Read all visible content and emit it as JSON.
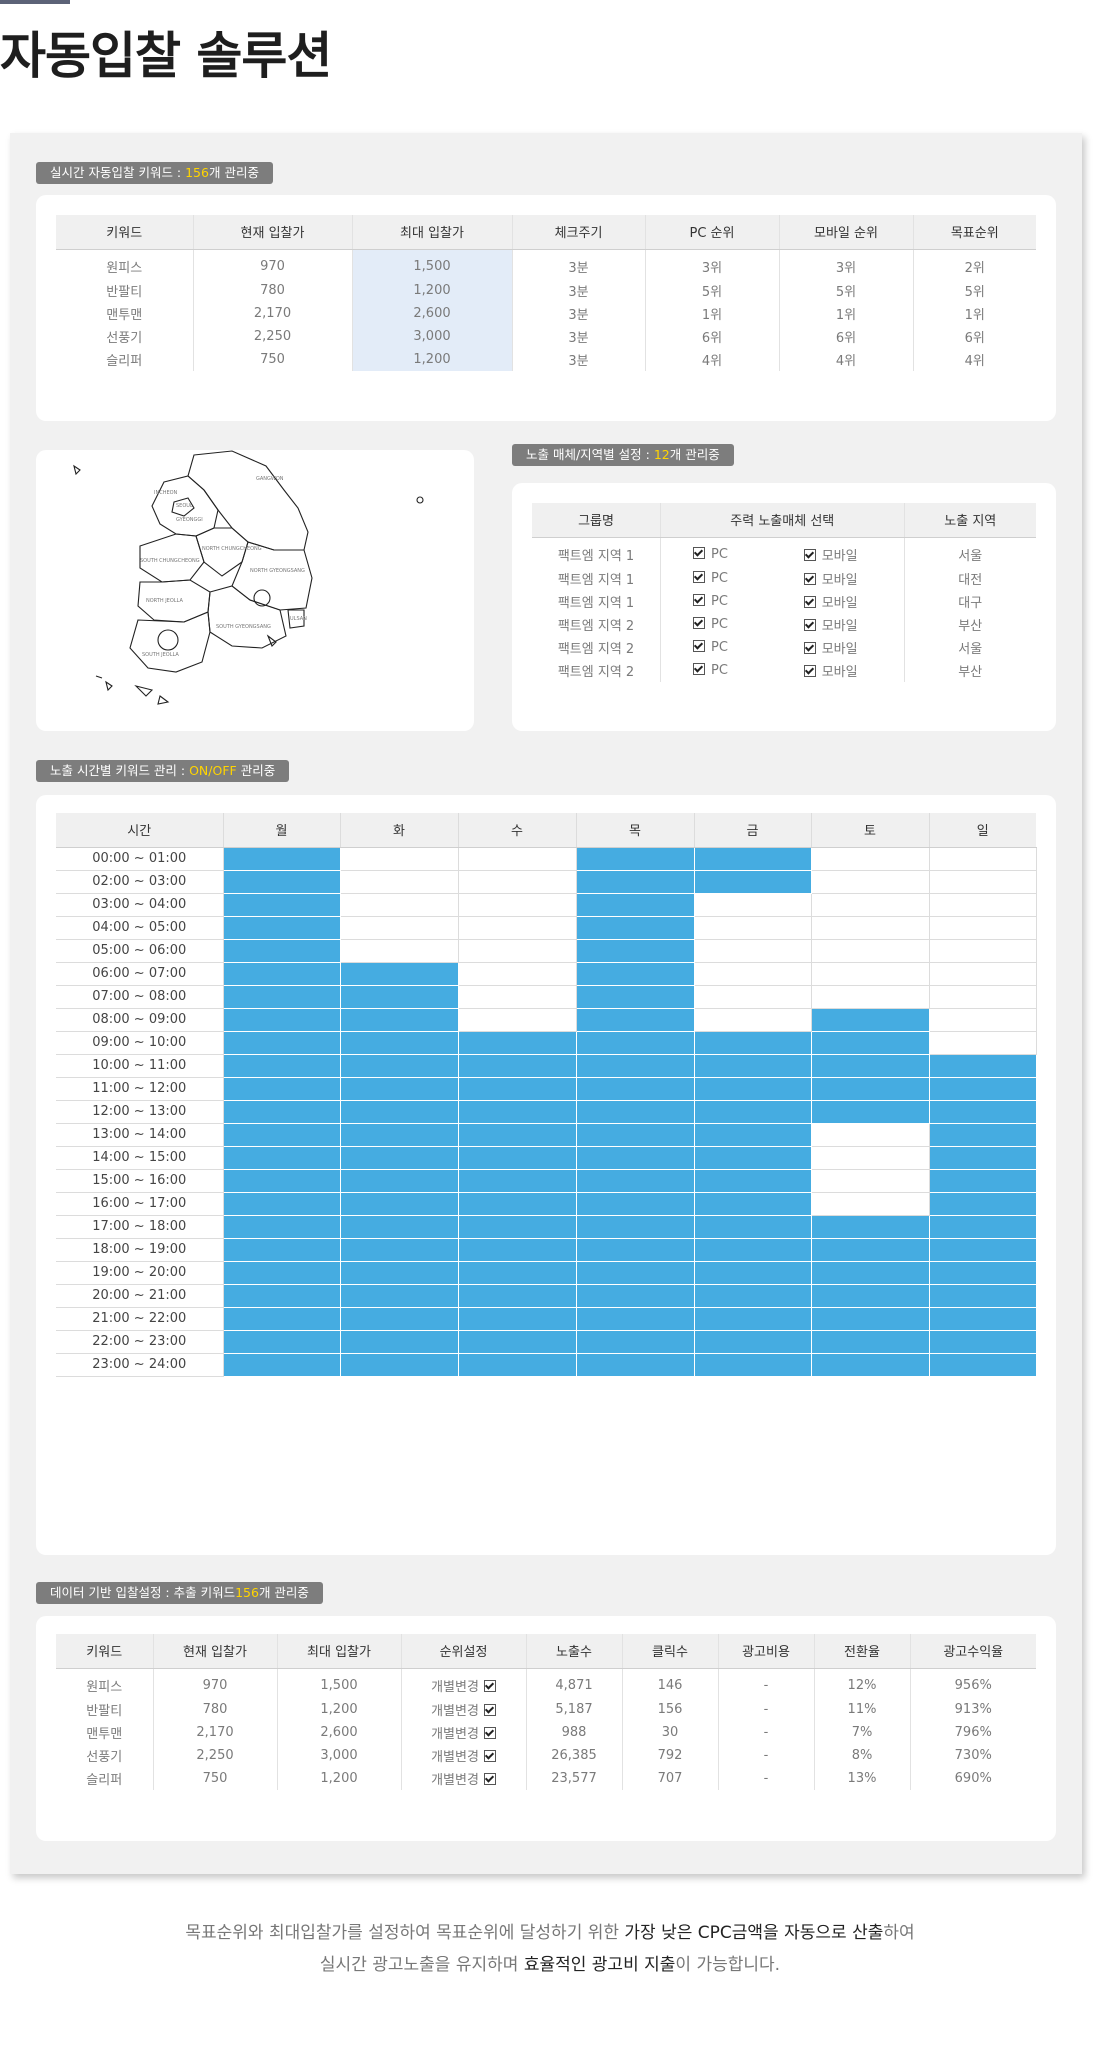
{
  "page_title": "자동입찰 솔루션",
  "section1": {
    "tag_prefix": "실시간 자동입찰 키워드 : ",
    "tag_count": "156",
    "tag_suffix": "개 관리중",
    "headers": [
      "키워드",
      "현재 입찰가",
      "최대 입찰가",
      "체크주기",
      "PC 순위",
      "모바일 순위",
      "목표순위"
    ],
    "rows": [
      [
        "원피스",
        "970",
        "1,500",
        "3분",
        "3위",
        "3위",
        "2위"
      ],
      [
        "반팔티",
        "780",
        "1,200",
        "3분",
        "5위",
        "5위",
        "5위"
      ],
      [
        "맨투맨",
        "2,170",
        "2,600",
        "3분",
        "1위",
        "1위",
        "1위"
      ],
      [
        "선풍기",
        "2,250",
        "3,000",
        "3분",
        "6위",
        "6위",
        "6위"
      ],
      [
        "슬리퍼",
        "750",
        "1,200",
        "3분",
        "4위",
        "4위",
        "4위"
      ]
    ]
  },
  "map": {
    "labels": [
      "GANGWON",
      "INCHEON",
      "SEOUL",
      "GYEONGGI",
      "NORTH CHUNGCHEONG",
      "SOUTH CHUNGCHEONG",
      "NORTH GYEONGSANG",
      "NORTH JEOLLA",
      "SOUTH GYEONGSANG",
      "ULSAN",
      "SOUTH JEOLLA",
      "DAEGU",
      "GWANGJU",
      "DAEJEON"
    ]
  },
  "section2": {
    "tag_prefix": "노출 매체/지역별 설정 : ",
    "tag_count": "12",
    "tag_suffix": "개 관리중",
    "headers": [
      "그룹명",
      "주력 노출매체 선택",
      "노출 지역"
    ],
    "pc_label": "PC",
    "mobile_label": "모바일",
    "rows": [
      {
        "group": "팩트엠 지역 1",
        "region": "서울"
      },
      {
        "group": "팩트엠 지역 1",
        "region": "대전"
      },
      {
        "group": "팩트엠 지역 1",
        "region": "대구"
      },
      {
        "group": "팩트엠 지역 2",
        "region": "부산"
      },
      {
        "group": "팩트엠 지역 2",
        "region": "서울"
      },
      {
        "group": "팩트엠 지역 2",
        "region": "부산"
      }
    ]
  },
  "section3": {
    "tag_prefix": "노출 시간별 키워드 관리 : ",
    "tag_highlight": "ON/OFF",
    "tag_suffix": " 관리중",
    "headers": [
      "시간",
      "월",
      "화",
      "수",
      "목",
      "금",
      "토",
      "일"
    ],
    "on_color": "#45ace1",
    "rows": [
      {
        "time": "00:00 ~ 01:00",
        "on": [
          1,
          0,
          0,
          1,
          1,
          0,
          0
        ]
      },
      {
        "time": "02:00 ~ 03:00",
        "on": [
          1,
          0,
          0,
          1,
          1,
          0,
          0
        ]
      },
      {
        "time": "03:00 ~ 04:00",
        "on": [
          1,
          0,
          0,
          1,
          0,
          0,
          0
        ]
      },
      {
        "time": "04:00 ~ 05:00",
        "on": [
          1,
          0,
          0,
          1,
          0,
          0,
          0
        ]
      },
      {
        "time": "05:00 ~ 06:00",
        "on": [
          1,
          0,
          0,
          1,
          0,
          0,
          0
        ]
      },
      {
        "time": "06:00 ~ 07:00",
        "on": [
          1,
          1,
          0,
          1,
          0,
          0,
          0
        ]
      },
      {
        "time": "07:00 ~ 08:00",
        "on": [
          1,
          1,
          0,
          1,
          0,
          0,
          0
        ]
      },
      {
        "time": "08:00 ~ 09:00",
        "on": [
          1,
          1,
          0,
          1,
          0,
          1,
          0
        ]
      },
      {
        "time": "09:00 ~ 10:00",
        "on": [
          1,
          1,
          1,
          1,
          1,
          1,
          0
        ]
      },
      {
        "time": "10:00 ~ 11:00",
        "on": [
          1,
          1,
          1,
          1,
          1,
          1,
          1
        ]
      },
      {
        "time": "11:00 ~ 12:00",
        "on": [
          1,
          1,
          1,
          1,
          1,
          1,
          1
        ]
      },
      {
        "time": "12:00 ~ 13:00",
        "on": [
          1,
          1,
          1,
          1,
          1,
          1,
          1
        ]
      },
      {
        "time": "13:00 ~ 14:00",
        "on": [
          1,
          1,
          1,
          1,
          1,
          0,
          1
        ]
      },
      {
        "time": "14:00 ~ 15:00",
        "on": [
          1,
          1,
          1,
          1,
          1,
          0,
          1
        ]
      },
      {
        "time": "15:00 ~ 16:00",
        "on": [
          1,
          1,
          1,
          1,
          1,
          0,
          1
        ]
      },
      {
        "time": "16:00 ~ 17:00",
        "on": [
          1,
          1,
          1,
          1,
          1,
          0,
          1
        ]
      },
      {
        "time": "17:00 ~ 18:00",
        "on": [
          1,
          1,
          1,
          1,
          1,
          1,
          1
        ]
      },
      {
        "time": "18:00 ~ 19:00",
        "on": [
          1,
          1,
          1,
          1,
          1,
          1,
          1
        ]
      },
      {
        "time": "19:00 ~ 20:00",
        "on": [
          1,
          1,
          1,
          1,
          1,
          1,
          1
        ]
      },
      {
        "time": "20:00 ~ 21:00",
        "on": [
          1,
          1,
          1,
          1,
          1,
          1,
          1
        ]
      },
      {
        "time": "21:00 ~ 22:00",
        "on": [
          1,
          1,
          1,
          1,
          1,
          1,
          1
        ]
      },
      {
        "time": "22:00 ~ 23:00",
        "on": [
          1,
          1,
          1,
          1,
          1,
          1,
          1
        ]
      },
      {
        "time": "23:00 ~ 24:00",
        "on": [
          1,
          1,
          1,
          1,
          1,
          1,
          1
        ]
      }
    ]
  },
  "section4": {
    "tag_prefix": "데이터 기반 입찰설정 : 추출 키워드",
    "tag_count": "156",
    "tag_suffix": "개 관리중",
    "headers": [
      "키워드",
      "현재 입찰가",
      "최대 입찰가",
      "순위설정",
      "노출수",
      "클릭수",
      "광고비용",
      "전환율",
      "광고수익율"
    ],
    "rank_label": "개별변경",
    "rows": [
      [
        "원피스",
        "970",
        "1,500",
        "4,871",
        "146",
        "-",
        "12%",
        "956%"
      ],
      [
        "반팔티",
        "780",
        "1,200",
        "5,187",
        "156",
        "-",
        "11%",
        "913%"
      ],
      [
        "맨투맨",
        "2,170",
        "2,600",
        "988",
        "30",
        "-",
        "7%",
        "796%"
      ],
      [
        "선풍기",
        "2,250",
        "3,000",
        "26,385",
        "792",
        "-",
        "8%",
        "730%"
      ],
      [
        "슬리퍼",
        "750",
        "1,200",
        "23,577",
        "707",
        "-",
        "13%",
        "690%"
      ]
    ]
  },
  "footer": {
    "line1_a": "목표순위와 최대입찰가를 설정하여 목표순위에 달성하기 위한 ",
    "line1_b": "가장 낮은 CPC금액을 자동으로 산출",
    "line1_c": "하여",
    "line2_a": "실시간 광고노출을 유지하며 ",
    "line2_b": "효율적인 광고비 지출",
    "line2_c": "이 가능합니다."
  }
}
